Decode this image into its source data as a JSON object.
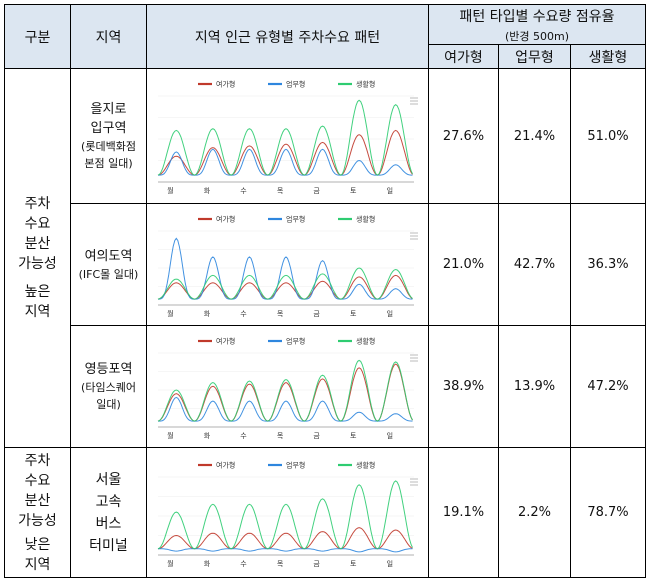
{
  "header": {
    "category": "구분",
    "region": "지역",
    "pattern": "지역 인근 유형별 주차수요 패턴",
    "share_title": "패턴 타입별 수요량 점유율",
    "share_sub": "(반경 500m)",
    "types": [
      "여가형",
      "업무형",
      "생활형"
    ]
  },
  "categories": {
    "high": [
      "주차",
      "수요",
      "분산",
      "가능성",
      "높은",
      "지역"
    ],
    "low": [
      "주차",
      "수요",
      "분산",
      "가능성",
      "낮은",
      "지역"
    ]
  },
  "legend": [
    "여가형",
    "업무형",
    "생활형"
  ],
  "days": [
    "월",
    "화",
    "수",
    "목",
    "금",
    "토",
    "일"
  ],
  "colors": {
    "leisure": "#c0392b",
    "business": "#2e86de",
    "living": "#2ecc71",
    "header_bg": "#dce6f1"
  },
  "rows": [
    {
      "region_lines": [
        "을지로",
        "입구역"
      ],
      "region_small": [
        "(롯데백화점",
        "본점 일대)"
      ],
      "shares": [
        "27.6%",
        "21.4%",
        "51.0%"
      ]
    },
    {
      "region_lines": [
        "여의도역"
      ],
      "region_small": [
        "(IFC몰 일대)"
      ],
      "shares": [
        "21.0%",
        "42.7%",
        "36.3%"
      ]
    },
    {
      "region_lines": [
        "영등포역"
      ],
      "region_small": [
        "(타임스퀘어",
        "일대)"
      ],
      "shares": [
        "38.9%",
        "13.9%",
        "47.2%"
      ]
    },
    {
      "region_lines": [
        "서울",
        "고속",
        "버스",
        "터미널"
      ],
      "region_small": [],
      "shares": [
        "19.1%",
        "2.2%",
        "78.7%"
      ]
    }
  ],
  "chart_data": [
    {
      "type": "line",
      "title": "",
      "xlabel": "",
      "ylabel": "",
      "categories": [
        "월",
        "화",
        "수",
        "목",
        "금",
        "토",
        "일"
      ],
      "series": [
        {
          "name": "여가형",
          "values": [
            0.3,
            0.4,
            0.42,
            0.44,
            0.46,
            0.55,
            0.6
          ]
        },
        {
          "name": "업무형",
          "values": [
            0.35,
            0.38,
            0.38,
            0.38,
            0.38,
            0.25,
            0.2
          ]
        },
        {
          "name": "생활형",
          "values": [
            0.6,
            0.62,
            0.62,
            0.62,
            0.65,
            0.95,
            0.9
          ]
        }
      ]
    },
    {
      "type": "line",
      "title": "",
      "xlabel": "",
      "ylabel": "",
      "categories": [
        "월",
        "화",
        "수",
        "목",
        "금",
        "토",
        "일"
      ],
      "series": [
        {
          "name": "여가형",
          "values": [
            0.3,
            0.3,
            0.3,
            0.3,
            0.32,
            0.38,
            0.4
          ]
        },
        {
          "name": "업무형",
          "values": [
            0.9,
            0.65,
            0.65,
            0.65,
            0.6,
            0.28,
            0.22
          ]
        },
        {
          "name": "생활형",
          "values": [
            0.35,
            0.4,
            0.4,
            0.4,
            0.42,
            0.5,
            0.48
          ]
        }
      ]
    },
    {
      "type": "line",
      "title": "",
      "xlabel": "",
      "ylabel": "",
      "categories": [
        "월",
        "화",
        "수",
        "목",
        "금",
        "토",
        "일"
      ],
      "series": [
        {
          "name": "여가형",
          "values": [
            0.45,
            0.55,
            0.58,
            0.6,
            0.65,
            0.8,
            0.85
          ]
        },
        {
          "name": "업무형",
          "values": [
            0.4,
            0.35,
            0.35,
            0.35,
            0.35,
            0.2,
            0.18
          ]
        },
        {
          "name": "생활형",
          "values": [
            0.5,
            0.6,
            0.62,
            0.64,
            0.7,
            0.9,
            0.88
          ]
        }
      ]
    },
    {
      "type": "line",
      "title": "",
      "xlabel": "",
      "ylabel": "",
      "categories": [
        "월",
        "화",
        "수",
        "목",
        "금",
        "토",
        "일"
      ],
      "series": [
        {
          "name": "여가형",
          "values": [
            0.25,
            0.28,
            0.28,
            0.28,
            0.3,
            0.35,
            0.32
          ]
        },
        {
          "name": "업무형",
          "values": [
            0.05,
            0.05,
            0.05,
            0.05,
            0.05,
            0.04,
            0.04
          ]
        },
        {
          "name": "생활형",
          "values": [
            0.55,
            0.65,
            0.65,
            0.65,
            0.72,
            0.9,
            0.95
          ]
        }
      ]
    }
  ]
}
